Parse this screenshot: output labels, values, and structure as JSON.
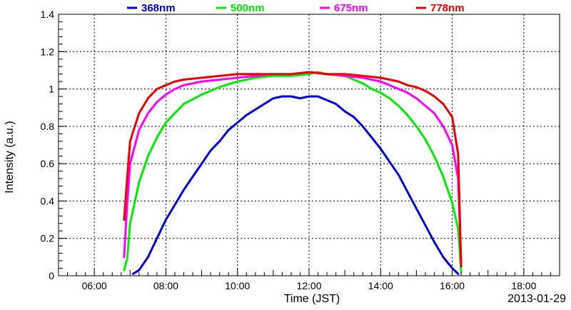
{
  "chart_data": {
    "type": "line",
    "title": "",
    "xlabel": "Time (JST)",
    "ylabel": "Intensity (a.u.)",
    "annotation": "2013-01-29",
    "xlim": [
      "05:00",
      "19:00"
    ],
    "ylim": [
      0,
      1.4
    ],
    "x_ticks": [
      "06:00",
      "08:00",
      "10:00",
      "12:00",
      "14:00",
      "16:00",
      "18:00"
    ],
    "y_ticks": [
      "0",
      "0.2",
      "0.4",
      "0.6",
      "0.8",
      "1",
      "1.2",
      "1.4"
    ],
    "grid": true,
    "legend_position": "top",
    "series": [
      {
        "name": "368nm",
        "color": "#0000dd",
        "x": [
          "07:05",
          "07:15",
          "07:30",
          "07:45",
          "08:00",
          "08:15",
          "08:30",
          "08:45",
          "09:00",
          "09:15",
          "09:30",
          "09:45",
          "10:00",
          "10:15",
          "10:30",
          "10:45",
          "11:00",
          "11:15",
          "11:30",
          "11:45",
          "12:00",
          "12:15",
          "12:30",
          "12:45",
          "13:00",
          "13:15",
          "13:30",
          "13:45",
          "14:00",
          "14:15",
          "14:30",
          "14:45",
          "15:00",
          "15:15",
          "15:30",
          "15:45",
          "16:00",
          "16:10"
        ],
        "y": [
          0.01,
          0.03,
          0.1,
          0.2,
          0.3,
          0.38,
          0.46,
          0.53,
          0.6,
          0.67,
          0.72,
          0.78,
          0.82,
          0.86,
          0.89,
          0.92,
          0.95,
          0.96,
          0.96,
          0.95,
          0.96,
          0.96,
          0.94,
          0.92,
          0.88,
          0.85,
          0.8,
          0.74,
          0.68,
          0.61,
          0.54,
          0.45,
          0.36,
          0.27,
          0.18,
          0.1,
          0.04,
          0.01
        ]
      },
      {
        "name": "500nm",
        "color": "#00ee00",
        "x": [
          "06:50",
          "06:55",
          "07:00",
          "07:15",
          "07:30",
          "07:45",
          "08:00",
          "08:15",
          "08:30",
          "09:00",
          "09:30",
          "10:00",
          "10:30",
          "11:00",
          "11:30",
          "12:00",
          "12:15",
          "12:30",
          "13:00",
          "13:15",
          "13:30",
          "13:45",
          "14:00",
          "14:15",
          "14:30",
          "14:45",
          "15:00",
          "15:15",
          "15:30",
          "15:45",
          "16:00",
          "16:10",
          "16:15"
        ],
        "y": [
          0.03,
          0.09,
          0.28,
          0.5,
          0.64,
          0.74,
          0.82,
          0.87,
          0.92,
          0.97,
          1.01,
          1.04,
          1.06,
          1.07,
          1.07,
          1.08,
          1.09,
          1.08,
          1.07,
          1.05,
          1.03,
          1.0,
          0.98,
          0.95,
          0.91,
          0.86,
          0.8,
          0.73,
          0.64,
          0.53,
          0.39,
          0.25,
          0.02
        ]
      },
      {
        "name": "675nm",
        "color": "#ff00ff",
        "x": [
          "06:50",
          "06:55",
          "07:00",
          "07:15",
          "07:30",
          "07:45",
          "08:00",
          "08:15",
          "08:30",
          "09:00",
          "09:30",
          "10:00",
          "10:30",
          "11:00",
          "11:30",
          "12:00",
          "12:30",
          "13:00",
          "13:30",
          "14:00",
          "14:15",
          "14:30",
          "14:45",
          "15:00",
          "15:15",
          "15:30",
          "15:45",
          "16:00",
          "16:10",
          "16:15"
        ],
        "y": [
          0.1,
          0.38,
          0.6,
          0.78,
          0.87,
          0.93,
          0.97,
          1.0,
          1.02,
          1.04,
          1.05,
          1.06,
          1.07,
          1.08,
          1.08,
          1.09,
          1.08,
          1.07,
          1.06,
          1.04,
          1.02,
          1.0,
          0.98,
          0.95,
          0.91,
          0.87,
          0.8,
          0.7,
          0.52,
          0.05
        ]
      },
      {
        "name": "778nm",
        "color": "#ee0000",
        "x": [
          "06:50",
          "06:55",
          "07:00",
          "07:15",
          "07:30",
          "07:45",
          "08:00",
          "08:15",
          "08:30",
          "09:00",
          "09:30",
          "10:00",
          "10:30",
          "11:00",
          "11:30",
          "12:00",
          "12:30",
          "13:00",
          "13:30",
          "14:00",
          "14:15",
          "14:30",
          "14:45",
          "15:00",
          "15:15",
          "15:30",
          "15:45",
          "16:00",
          "16:10",
          "16:15"
        ],
        "y": [
          0.3,
          0.52,
          0.72,
          0.87,
          0.95,
          1.0,
          1.02,
          1.04,
          1.05,
          1.06,
          1.07,
          1.08,
          1.08,
          1.08,
          1.08,
          1.09,
          1.08,
          1.08,
          1.07,
          1.06,
          1.05,
          1.04,
          1.02,
          1.01,
          0.99,
          0.96,
          0.92,
          0.85,
          0.65,
          0.05
        ]
      }
    ]
  }
}
